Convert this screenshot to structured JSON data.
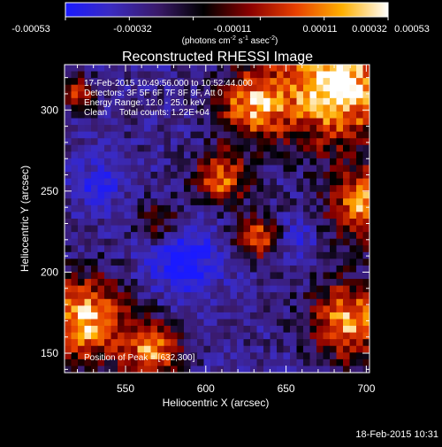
{
  "colorbar": {
    "tick_labels": [
      "-0.00053",
      "-0.00032",
      "-0.00011",
      "0.00011",
      "0.00032",
      "0.00053"
    ],
    "unit_label_parts": [
      "(photons cm",
      "-2",
      " s",
      "-1",
      " asec",
      "-2",
      ")"
    ],
    "range": [
      -0.00053,
      0.00053
    ],
    "colors": [
      "#1a1aff",
      "#3b2bbf",
      "#3a1a6a",
      "#000000",
      "#8a0000",
      "#e84000",
      "#ffb000",
      "#ffffff"
    ]
  },
  "title": "Reconstructed RHESSI Image",
  "info": {
    "line1": "17-Feb-2015 10:49:56.000 to 10:52:44.000",
    "line2": "Detectors: 3F 5F 6F 7F 8F 9F, Att 0",
    "line3": "Energy Range: 12.0 - 25.0 keV",
    "line4": "Clean     Total counts: 1.22E+04",
    "peak": "Position of Peak = [632,300]"
  },
  "footer_timestamp": "18-Feb-2015 10:31",
  "chart_data": {
    "type": "heatmap",
    "title": "Reconstructed RHESSI Image",
    "xlabel": "Heliocentric X (arcsec)",
    "ylabel": "Heliocentric Y (arcsec)",
    "xlim": [
      512,
      702
    ],
    "ylim": [
      138,
      328
    ],
    "xticks": [
      550,
      600,
      650,
      700
    ],
    "yticks": [
      150,
      200,
      250,
      300
    ],
    "xtick_labels": [
      "550",
      "600",
      "650",
      "700"
    ],
    "ytick_labels": [
      "150",
      "200",
      "250",
      "300"
    ],
    "value_range": [
      -0.00053,
      0.00053
    ],
    "peak_position": [
      632,
      300
    ],
    "colors": {
      "deep_negative": "#1a1aff",
      "negative": "#3b2bbf",
      "low_negative": "#3a1a6a",
      "zero": "#000000",
      "low_positive": "#8a0000",
      "mid_positive": "#e84000",
      "high_positive": "#ffb000",
      "max_positive": "#ffffff"
    },
    "grid": false
  }
}
